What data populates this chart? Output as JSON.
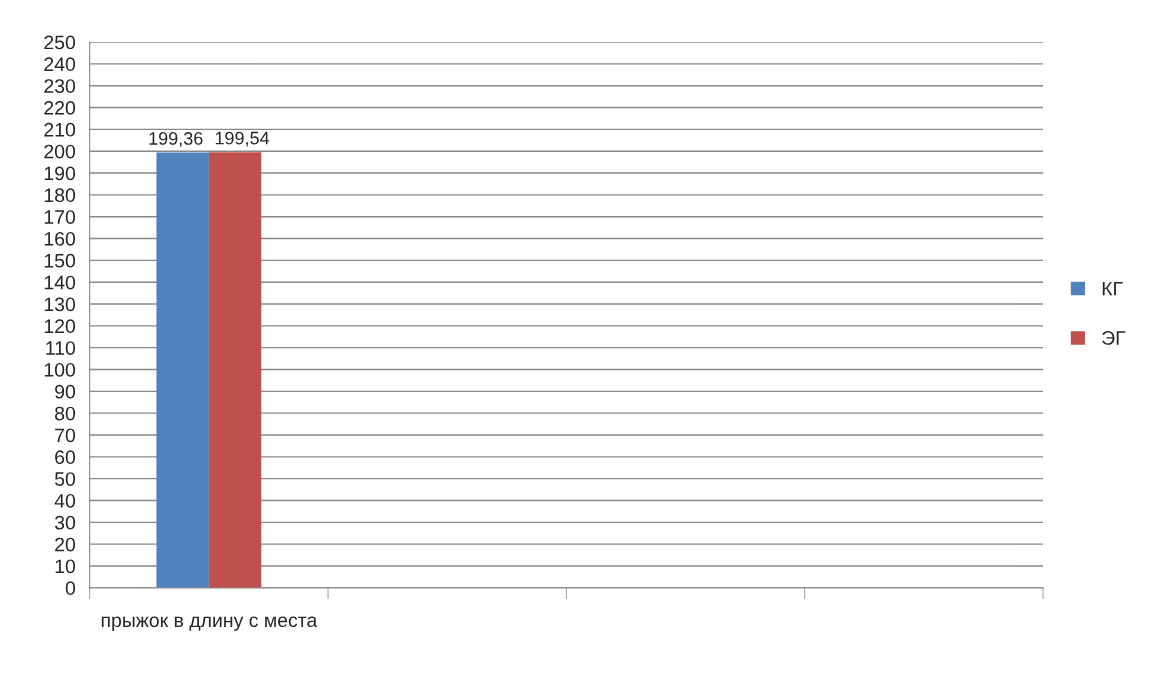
{
  "chart_data": {
    "type": "bar",
    "categories": [
      "прыжок в длину с места",
      null,
      null,
      null
    ],
    "series": [
      {
        "name": "КГ",
        "color": "#4f81bd",
        "values": [
          199.36,
          null,
          null,
          null
        ],
        "value_labels": [
          "199,36",
          null,
          null,
          null
        ]
      },
      {
        "name": "ЭГ",
        "color": "#c0504d",
        "values": [
          199.54,
          null,
          null,
          null
        ],
        "value_labels": [
          "199,54",
          null,
          null,
          null
        ]
      }
    ],
    "ylim": [
      0,
      250
    ],
    "yticks": [
      0,
      10,
      20,
      30,
      40,
      50,
      60,
      70,
      80,
      90,
      100,
      110,
      120,
      130,
      140,
      150,
      160,
      170,
      180,
      190,
      200,
      210,
      220,
      230,
      240,
      250
    ],
    "grid": "y",
    "legend": "right"
  }
}
